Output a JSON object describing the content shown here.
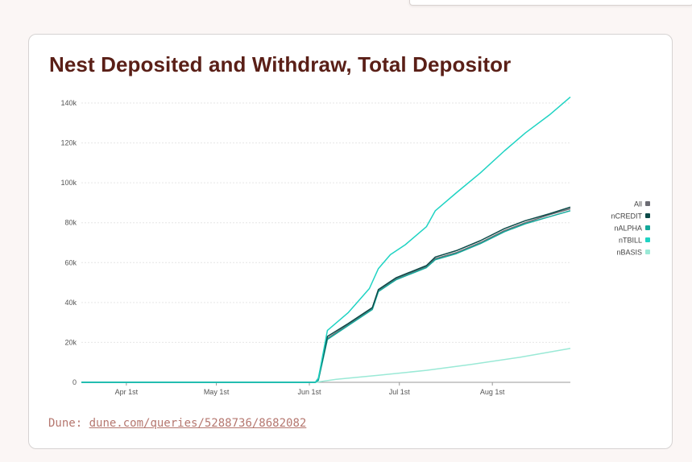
{
  "card": {
    "source_label": "Dune:",
    "source_link": "dune.com/queries/5288736/8682082"
  },
  "chart_data": {
    "type": "line",
    "title": "Nest Deposited and Withdraw, Total Depositor",
    "xlabel": "",
    "ylabel": "",
    "x_range": [
      "2025-03-17",
      "2025-08-27"
    ],
    "ylim": [
      0,
      140000
    ],
    "y_ticks": [
      0,
      20000,
      40000,
      60000,
      80000,
      100000,
      120000,
      140000
    ],
    "y_tick_labels": [
      "0",
      "20k",
      "40k",
      "60k",
      "80k",
      "100k",
      "120k",
      "140k"
    ],
    "x_ticks": [
      "2025-04-01",
      "2025-05-01",
      "2025-06-01",
      "2025-07-01",
      "2025-08-01"
    ],
    "x_tick_labels": [
      "Apr 1st",
      "May 1st",
      "Jun 1st",
      "Jul 1st",
      "Aug 1st"
    ],
    "grid": "horizontal",
    "legend_position": "right",
    "series": [
      {
        "name": "All",
        "color": "#6b6b73",
        "points": [
          [
            "2025-03-17",
            0
          ],
          [
            "2025-06-03",
            0
          ],
          [
            "2025-06-04",
            1500
          ],
          [
            "2025-06-07",
            22000
          ],
          [
            "2025-06-14",
            29000
          ],
          [
            "2025-06-22",
            37000
          ],
          [
            "2025-06-24",
            46000
          ],
          [
            "2025-06-28",
            50000
          ],
          [
            "2025-06-30",
            52000
          ],
          [
            "2025-07-10",
            58000
          ],
          [
            "2025-07-13",
            62000
          ],
          [
            "2025-07-20",
            65000
          ],
          [
            "2025-07-28",
            70000
          ],
          [
            "2025-08-05",
            76000
          ],
          [
            "2025-08-12",
            80000
          ],
          [
            "2025-08-20",
            84000
          ],
          [
            "2025-08-27",
            87000
          ]
        ]
      },
      {
        "name": "nCREDIT",
        "color": "#0c4a48",
        "points": [
          [
            "2025-03-17",
            0
          ],
          [
            "2025-06-03",
            0
          ],
          [
            "2025-06-04",
            2000
          ],
          [
            "2025-06-07",
            23000
          ],
          [
            "2025-06-14",
            29500
          ],
          [
            "2025-06-22",
            37500
          ],
          [
            "2025-06-24",
            46500
          ],
          [
            "2025-06-28",
            50500
          ],
          [
            "2025-06-30",
            52500
          ],
          [
            "2025-07-10",
            58500
          ],
          [
            "2025-07-13",
            62800
          ],
          [
            "2025-07-20",
            66000
          ],
          [
            "2025-07-28",
            71000
          ],
          [
            "2025-08-05",
            77000
          ],
          [
            "2025-08-12",
            81000
          ],
          [
            "2025-08-20",
            84500
          ],
          [
            "2025-08-27",
            87800
          ]
        ]
      },
      {
        "name": "nALPHA",
        "color": "#14a89b",
        "points": [
          [
            "2025-03-17",
            0
          ],
          [
            "2025-06-03",
            0
          ],
          [
            "2025-06-04",
            1000
          ],
          [
            "2025-06-07",
            21500
          ],
          [
            "2025-06-14",
            28500
          ],
          [
            "2025-06-22",
            36500
          ],
          [
            "2025-06-24",
            45500
          ],
          [
            "2025-06-28",
            49500
          ],
          [
            "2025-06-30",
            51500
          ],
          [
            "2025-07-10",
            57500
          ],
          [
            "2025-07-13",
            61500
          ],
          [
            "2025-07-20",
            64500
          ],
          [
            "2025-07-28",
            69500
          ],
          [
            "2025-08-05",
            75500
          ],
          [
            "2025-08-12",
            79500
          ],
          [
            "2025-08-20",
            83000
          ],
          [
            "2025-08-27",
            86000
          ]
        ]
      },
      {
        "name": "nTBILL",
        "color": "#1fd3c3",
        "points": [
          [
            "2025-03-17",
            0
          ],
          [
            "2025-06-03",
            0
          ],
          [
            "2025-06-04",
            2000
          ],
          [
            "2025-06-07",
            26000
          ],
          [
            "2025-06-14",
            35000
          ],
          [
            "2025-06-21",
            47000
          ],
          [
            "2025-06-24",
            57000
          ],
          [
            "2025-06-28",
            64000
          ],
          [
            "2025-07-03",
            69000
          ],
          [
            "2025-07-10",
            78000
          ],
          [
            "2025-07-13",
            86000
          ],
          [
            "2025-07-20",
            95000
          ],
          [
            "2025-07-28",
            105000
          ],
          [
            "2025-08-05",
            116000
          ],
          [
            "2025-08-12",
            125000
          ],
          [
            "2025-08-20",
            134000
          ],
          [
            "2025-08-27",
            143000
          ]
        ]
      },
      {
        "name": "nBASIS",
        "color": "#9ae9d6",
        "points": [
          [
            "2025-03-17",
            0
          ],
          [
            "2025-06-03",
            0
          ],
          [
            "2025-06-10",
            1500
          ],
          [
            "2025-06-24",
            3500
          ],
          [
            "2025-07-10",
            6000
          ],
          [
            "2025-07-25",
            9000
          ],
          [
            "2025-08-10",
            12500
          ],
          [
            "2025-08-27",
            17000
          ]
        ]
      }
    ]
  }
}
